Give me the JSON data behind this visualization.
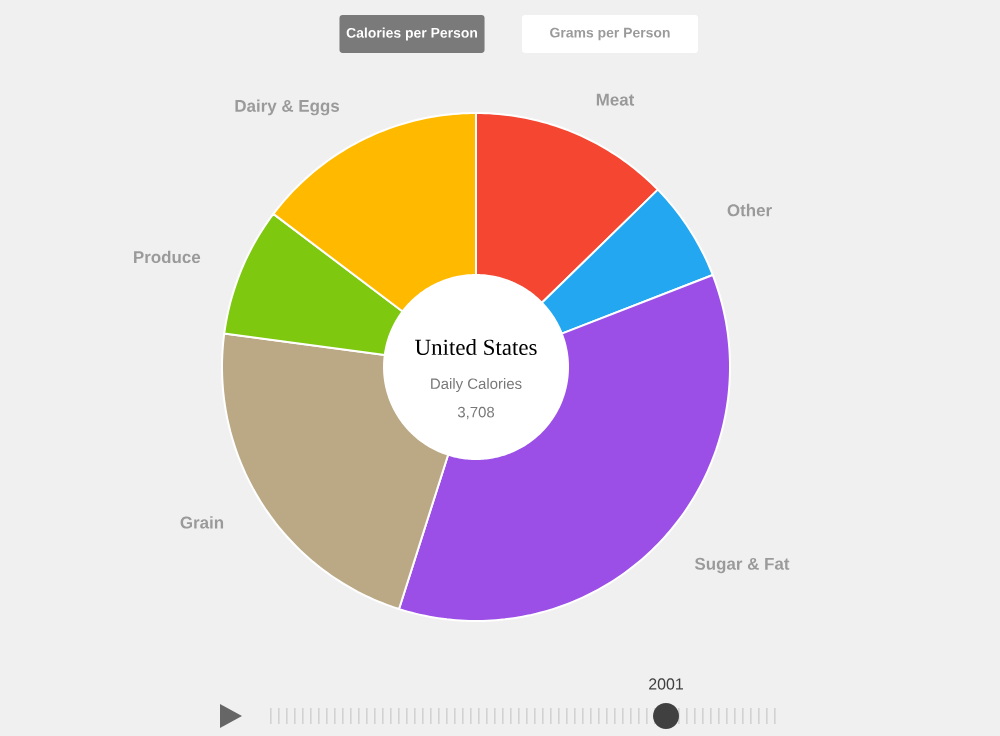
{
  "chart_data": {
    "type": "donut",
    "title": "United States",
    "subtitle": "Daily Calories",
    "categories": [
      "Meat",
      "Other",
      "Sugar & Fat",
      "Grain",
      "Produce",
      "Dairy & Eggs"
    ],
    "values": [
      12.7,
      6.4,
      35.8,
      22.2,
      8.2,
      14.7
    ],
    "colors": [
      "#f54632",
      "#22a7f0",
      "#9b4fe6",
      "#bba986",
      "#7ec810",
      "#ffba00"
    ],
    "annotations": [
      "3,708",
      "Calories per Person",
      "Grams per Person",
      "2001"
    ]
  }
}
